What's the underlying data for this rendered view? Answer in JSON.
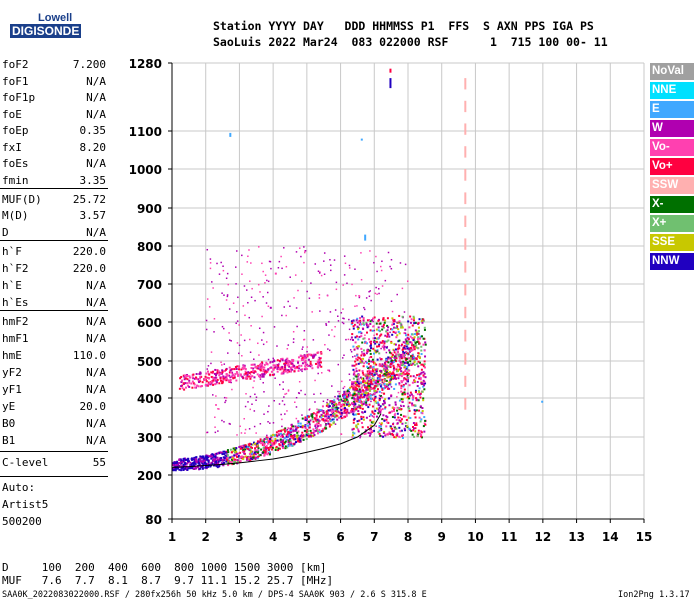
{
  "logo": {
    "line1": "Lowell",
    "line2": "DIGISONDE"
  },
  "header": {
    "row1": "Station YYYY DAY   DDD HHMMSS P1  FFS  S AXN PPS IGA PS",
    "row2": "SaoLuis 2022 Mar24  083 022000 RSF      1  715 100 00- 11"
  },
  "params": [
    {
      "label": "foF2",
      "value": "7.200"
    },
    {
      "label": "foF1",
      "value": "N/A"
    },
    {
      "label": "foF1p",
      "value": "N/A"
    },
    {
      "label": "foE",
      "value": "N/A"
    },
    {
      "label": "foEp",
      "value": "0.35"
    },
    {
      "label": "fxI",
      "value": "8.20"
    },
    {
      "label": "foEs",
      "value": "N/A"
    },
    {
      "label": "fmin",
      "value": "3.35"
    },
    {
      "label": "MUF(D)",
      "value": "25.72"
    },
    {
      "label": "M(D)",
      "value": "3.57"
    },
    {
      "label": "D",
      "value": "N/A"
    },
    {
      "label": "h`F",
      "value": "220.0"
    },
    {
      "label": "h`F2",
      "value": "220.0"
    },
    {
      "label": "h`E",
      "value": "N/A"
    },
    {
      "label": "h`Es",
      "value": "N/A"
    },
    {
      "label": "hmF2",
      "value": "N/A"
    },
    {
      "label": "hmF1",
      "value": "N/A"
    },
    {
      "label": "hmE",
      "value": "110.0"
    },
    {
      "label": "yF2",
      "value": "N/A"
    },
    {
      "label": "yF1",
      "value": "N/A"
    },
    {
      "label": "yE",
      "value": "20.0"
    },
    {
      "label": "B0",
      "value": "N/A"
    },
    {
      "label": "B1",
      "value": "N/A"
    },
    {
      "label": "C-level",
      "value": "55"
    }
  ],
  "auto": {
    "line1": "Auto:",
    "line2": "Artist5",
    "line3": "500200"
  },
  "legend": [
    {
      "label": "NoVal",
      "color": "#a0a0a0"
    },
    {
      "label": "NNE",
      "color": "#00e0ff"
    },
    {
      "label": "E",
      "color": "#40a8ff"
    },
    {
      "label": "W",
      "color": "#b000b0"
    },
    {
      "label": "Vo-",
      "color": "#ff40b0"
    },
    {
      "label": "Vo+",
      "color": "#ff0040"
    },
    {
      "label": "SSW",
      "color": "#ffb0b0"
    },
    {
      "label": "X-",
      "color": "#007000"
    },
    {
      "label": "X+",
      "color": "#70c070"
    },
    {
      "label": "SSE",
      "color": "#c8c800"
    },
    {
      "label": "NNW",
      "color": "#2000c0"
    }
  ],
  "footer": {
    "d_row": "D     100  200  400  600  800 1000 1500 3000 [km]",
    "muf_row": "MUF   7.6  7.7  8.1  8.7  9.7 11.1 15.2 25.7 [MHz]",
    "info": "SAA0K_2022083022000.RSF / 280fx256h 50 kHz 5.0 km / DPS-4 SAA0K 903 / 2.6 S 315.8 E",
    "version": "Ion2Png 1.3.17"
  },
  "chart_data": {
    "type": "scatter",
    "xlim": [
      1,
      15
    ],
    "ylim": [
      80,
      1280
    ],
    "xticks": [
      "1",
      "2",
      "3",
      "4",
      "5",
      "6",
      "7",
      "8",
      "9",
      "10",
      "11",
      "12",
      "13",
      "14",
      "15"
    ],
    "yticks": [
      "80",
      "200",
      "300",
      "400",
      "500",
      "600",
      "700",
      "800",
      "900",
      "1000",
      "1100",
      "1280"
    ],
    "grid": true,
    "trace": {
      "name": "",
      "x": [
        1.0,
        1.5,
        2.0,
        2.5,
        3.0,
        3.5,
        4.0,
        4.5,
        5.0,
        5.5,
        6.0,
        6.5,
        7.0,
        7.2
      ],
      "y": [
        220,
        222,
        225,
        228,
        232,
        237,
        242,
        250,
        260,
        270,
        282,
        300,
        330,
        360
      ]
    },
    "o_trace": {
      "x": [
        1.2,
        1.5,
        2.0,
        2.5,
        3.0,
        3.5,
        4.0,
        4.5
      ],
      "y": [
        430,
        430,
        435,
        440,
        445,
        450,
        460,
        480
      ]
    },
    "ssw_line": {
      "x": 9.7,
      "y_range": [
        370,
        1260
      ]
    }
  }
}
